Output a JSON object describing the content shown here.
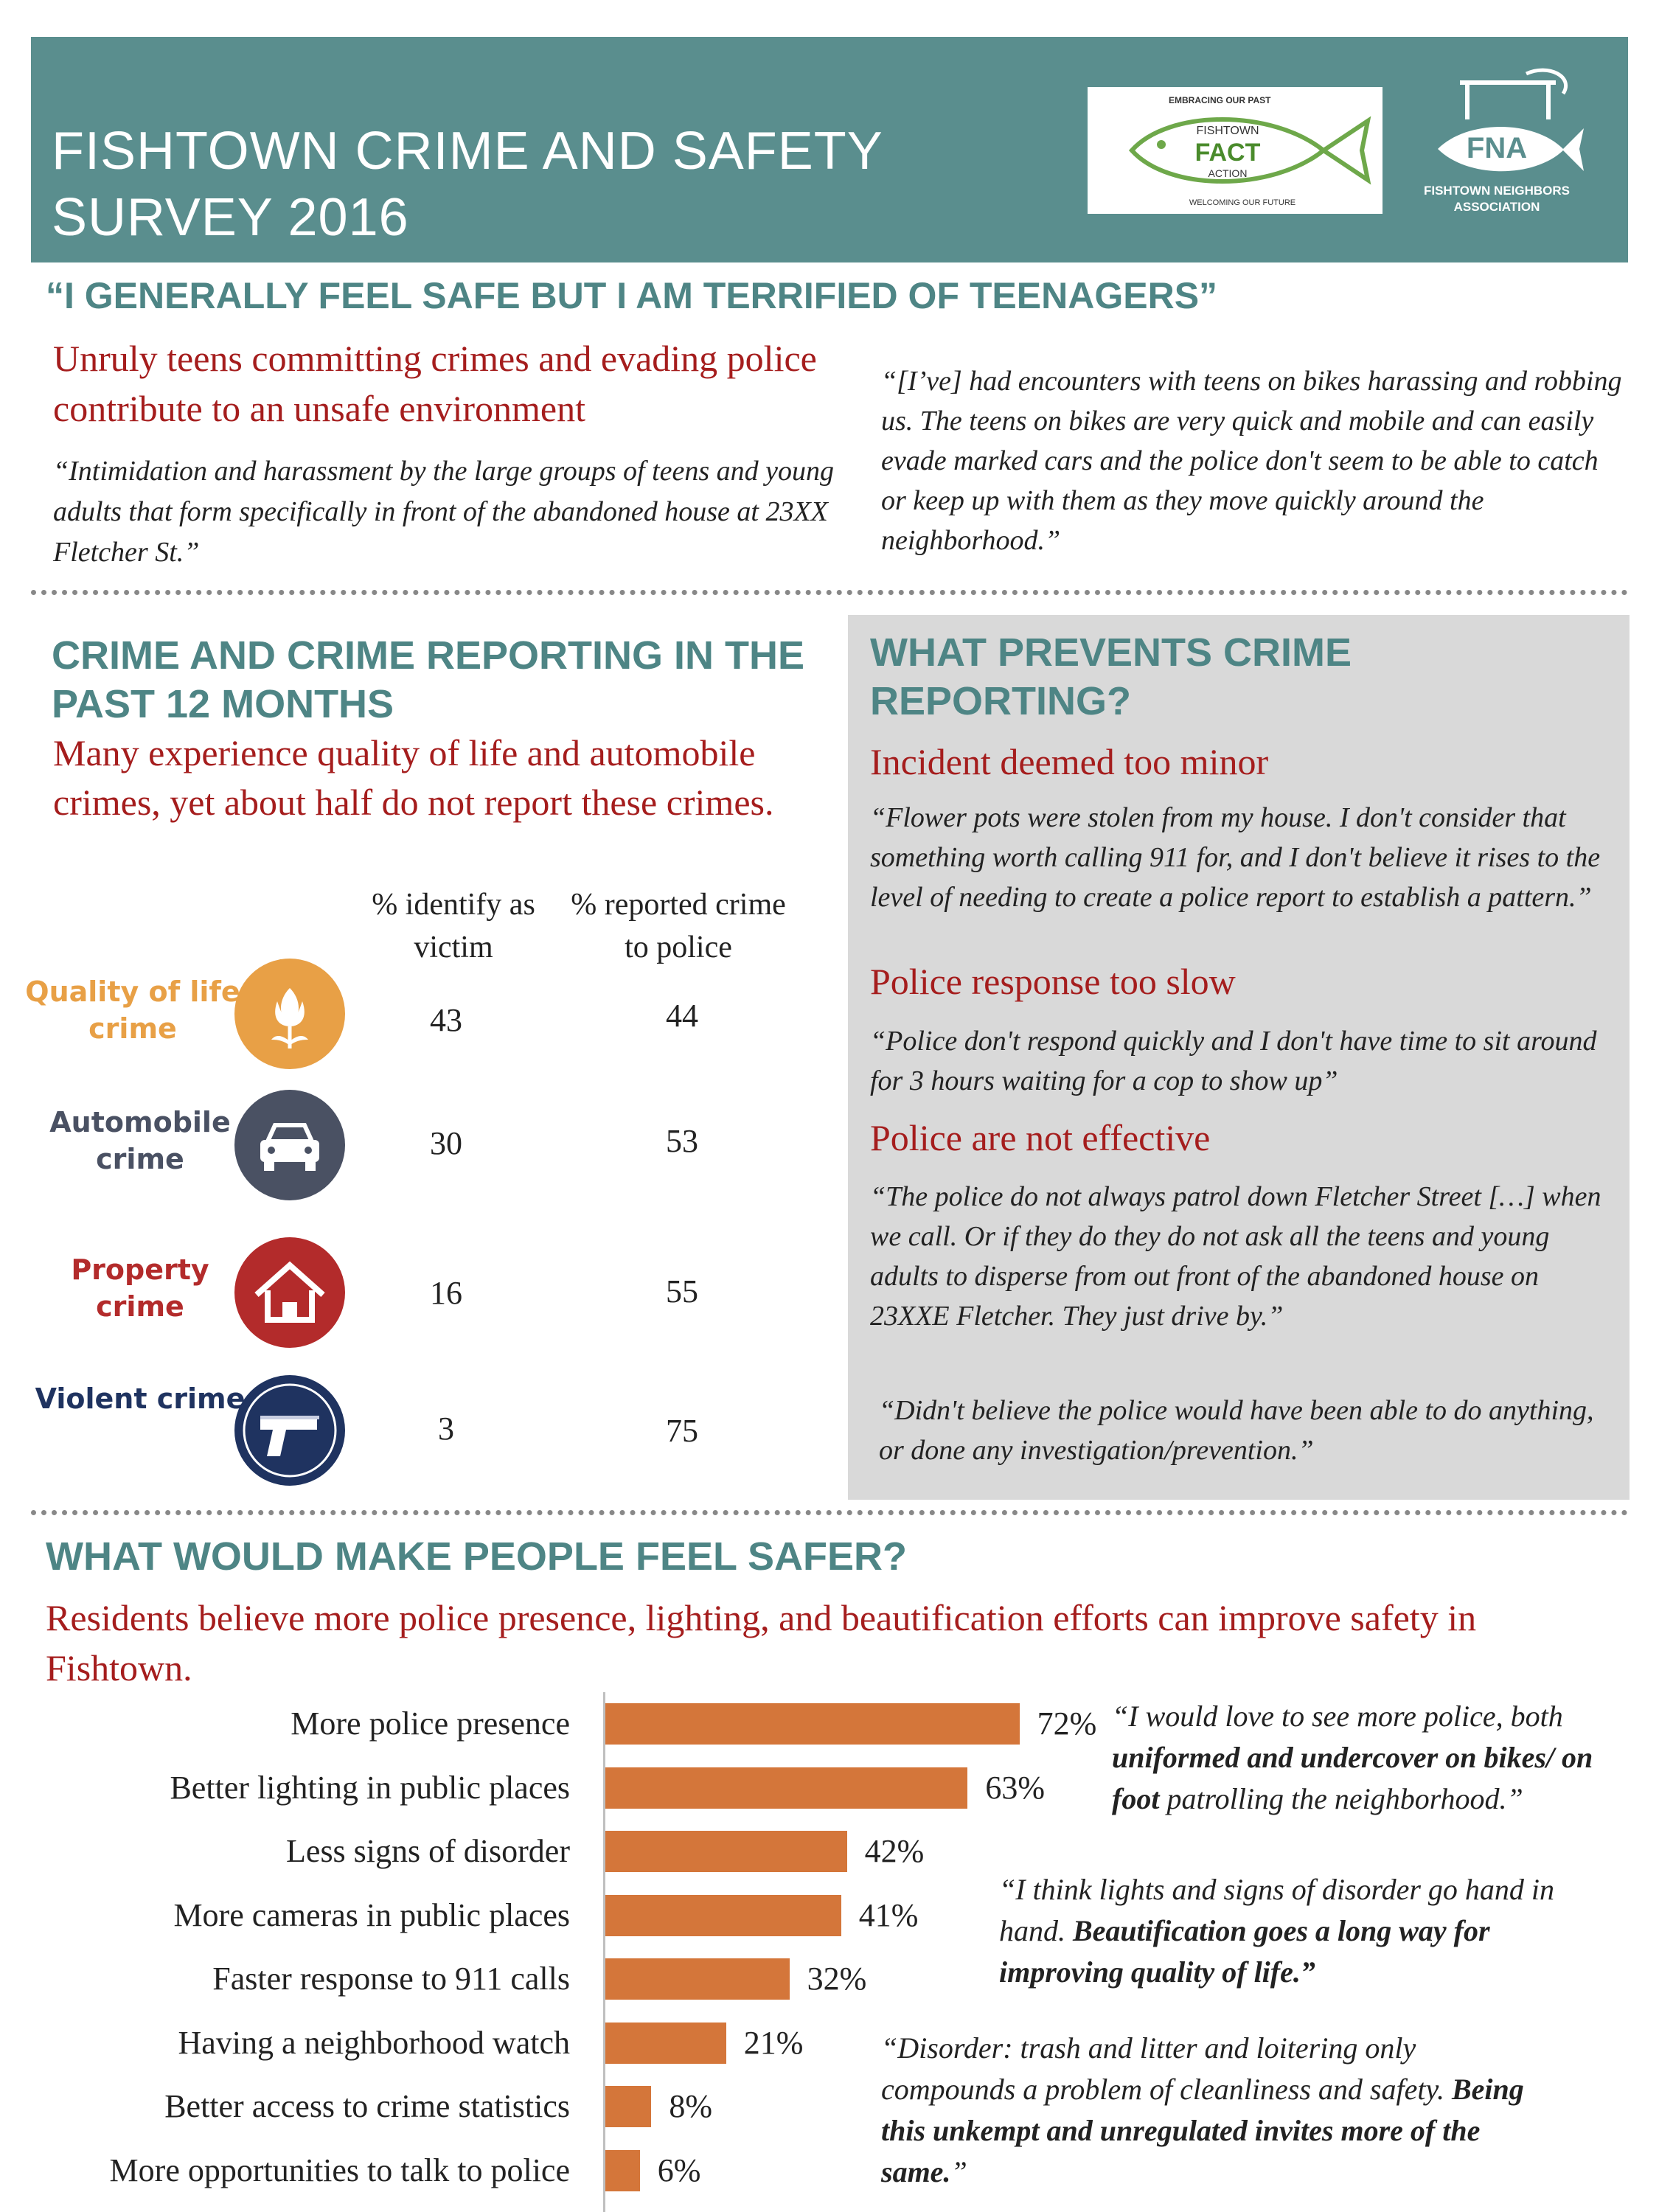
{
  "header": {
    "title_line1": "FISHTOWN CRIME AND SAFETY",
    "title_line2": "SURVEY 2016",
    "fact_logo": {
      "top_text": "EMBRACING OUR PAST",
      "fishtown": "FISHTOWN",
      "fact": "FACT",
      "action": "ACTION",
      "bottom_text": "WELCOMING OUR FUTURE"
    },
    "fna_logo": {
      "mark": "FNA",
      "line1": "FISHTOWN NEIGHBORS",
      "line2": "ASSOCIATION"
    }
  },
  "teens": {
    "headline": "“I GENERALLY FEEL SAFE BUT I AM TERRIFIED OF TEENAGERS”",
    "subhead": "Unruly teens committing crimes and evading police contribute to an unsafe environment",
    "quote_left": "“Intimidation and harassment by the large groups of teens and young adults that form specifically in front of the abandoned house at 23XX Fletcher St.”",
    "quote_right": "“[I’ve] had encounters with teens on bikes harassing and robbing us. The teens on bikes are very quick and mobile and can easily evade marked cars and the police don't seem to be able to catch or keep up with them as they move quickly around the neighborhood.”"
  },
  "crime": {
    "title": "CRIME AND CRIME REPORTING IN THE PAST 12 MONTHS",
    "subhead": "Many experience quality of life and automobile crimes, yet about half do not report these crimes.",
    "col_victim": "% identify as victim",
    "col_reported": "% reported crime to police",
    "rows": [
      {
        "label": "Quality of life crime",
        "icon": "tulip-icon",
        "color": "#e8a046",
        "victim": "43",
        "reported": "44"
      },
      {
        "label": "Automobile crime",
        "icon": "car-icon",
        "color": "#4a5163",
        "victim": "30",
        "reported": "53"
      },
      {
        "label": "Property crime",
        "icon": "house-icon",
        "color": "#b32b2b",
        "victim": "16",
        "reported": "55"
      },
      {
        "label": "Violent crime",
        "icon": "gun-icon",
        "color": "#1f3360",
        "victim": "3",
        "reported": "75"
      }
    ]
  },
  "prevents": {
    "title": "WHAT PREVENTS CRIME REPORTING?",
    "h1": "Incident deemed too minor",
    "q1": "“Flower pots were stolen from my house. I don't consider that something worth calling 911 for, and I don't believe it rises to the level of needing to create a police report to establish a pattern.”",
    "h2": "Police response too slow",
    "q2": "“Police don't respond quickly and I don't have time to sit around for 3 hours waiting for a cop to show up”",
    "h3": "Police are not effective",
    "q3": "“The police do not always patrol down Fletcher Street […] when we call. Or if they do they do not ask all the teens and young adults to disperse from out front of the abandoned house on 23XXE Fletcher. They just drive by.”",
    "q4": "“Didn't believe the police would have been able to do anything, or done any investigation/prevention.”"
  },
  "safer": {
    "title": "WHAT WOULD MAKE PEOPLE FEEL SAFER?",
    "subhead": "Residents believe more police presence, lighting, and beautification efforts can improve safety in Fishtown.",
    "quote1_a": "“I would love to see more police, both ",
    "quote1_b": "uniformed and undercover on bikes/ on foot",
    "quote1_c": " patrolling the neighborhood.”",
    "quote2_a": "“I think lights and signs of disorder go hand in hand. ",
    "quote2_b": "Beautification goes a long way for improving quality of life.”",
    "quote3_a": "“Disorder: trash and litter and loitering only compounds a problem of cleanliness and safety. ",
    "quote3_b": "Being this unkempt and unregulated invites more of the same.",
    "quote3_c": "”"
  },
  "chart_data": {
    "type": "bar",
    "orientation": "horizontal",
    "categories": [
      "More police presence",
      "Better lighting in public places",
      "Less signs of disorder",
      "More cameras in public places",
      "Faster response to 911 calls",
      "Having a neighborhood watch",
      "Better access to crime statistics",
      "More opportunities to talk to police"
    ],
    "values": [
      72,
      63,
      42,
      41,
      32,
      21,
      8,
      6
    ],
    "value_labels": [
      "72%",
      "63%",
      "42%",
      "41%",
      "32%",
      "21%",
      "8%",
      "6%"
    ],
    "color": "#d4763a"
  }
}
